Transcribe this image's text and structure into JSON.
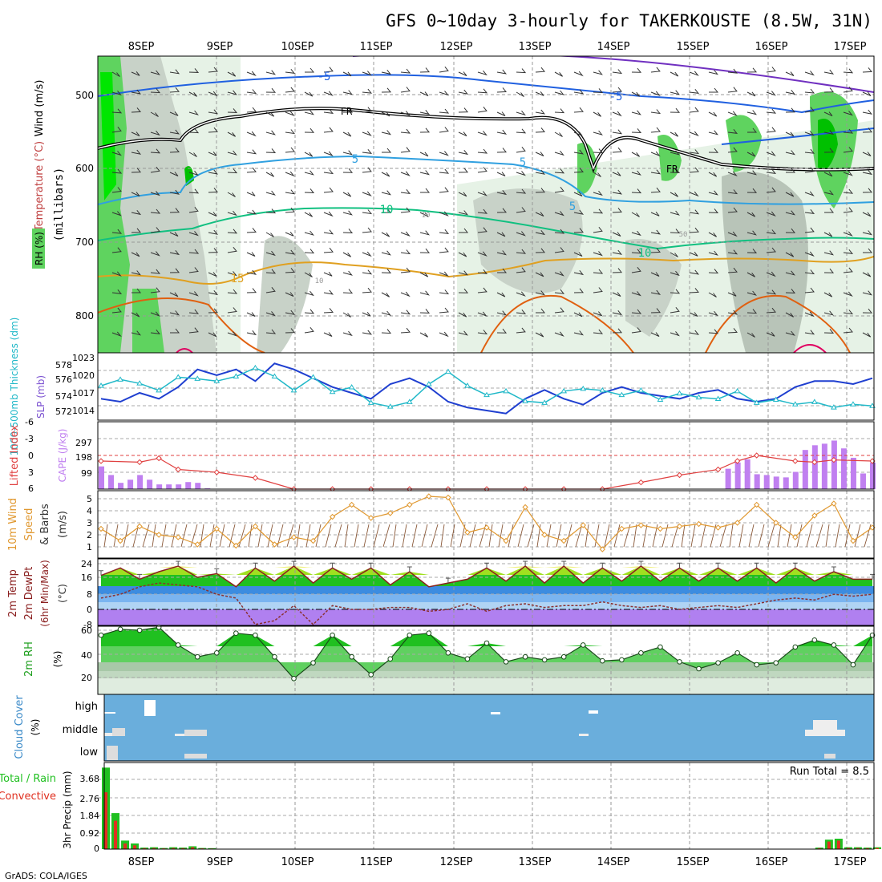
{
  "title": "GFS 0~10day 3-hourly for TAKERKOUSTE (8.5W, 31N)",
  "credit": "GrADS: COLA/IGES",
  "dates": [
    "8SEP",
    "9SEP",
    "10SEP",
    "11SEP",
    "12SEP",
    "13SEP",
    "14SEP",
    "15SEP",
    "16SEP",
    "17SEP"
  ],
  "colors": {
    "rh_light": "#e6f2e6",
    "rh_gray1": "#c8d2c8",
    "rh_gray2": "#a8b4a8",
    "rh_green": "#5fd35f",
    "rh_bright": "#00e600",
    "slp": "#1f3fd0",
    "thick": "#20b8c8",
    "li": "#e04040",
    "cape": "#c080f0",
    "wind": "#e09830",
    "temp_line": "#8b2020",
    "dew_line": "#8b3030",
    "cloud_bg": "#6aaedc",
    "precip_total": "#20c020",
    "precip_conv": "#e03020",
    "temp_neg5": "#7030c0",
    "temp_5": "#2060e0",
    "temp_m5": "#30a0e0",
    "temp_10": "#10c080",
    "temp_15": "#e0a020",
    "temp_20": "#e06010",
    "temp_25": "#e00060"
  },
  "panels": {
    "upper": {
      "ylabel_rh": "RH (%)",
      "ylabel_temp": "Temperature (°C)",
      "ylabel_wind": "Wind (m/s)",
      "ylabel_p": "(millibars)",
      "yticks": [
        "500",
        "600",
        "700",
        "800"
      ],
      "labels": {
        "m5a": "-5",
        "m5b": "-5",
        "fr1": "FR",
        "fr2": "FR",
        "c5a": "5",
        "c5b": "5",
        "c5c": "5",
        "c10a": "10",
        "c10b": "10",
        "c15": "15",
        "rh10": "10",
        "rh50": "50",
        "rh10b": "10"
      }
    },
    "slp": {
      "ylabel_thick": "1000-500mb Thickness (dm)",
      "ylabel_slp": "SLP (mb)",
      "left_ticks": [
        "578",
        "576",
        "574",
        "572"
      ],
      "right_ticks": [
        "1023",
        "1020",
        "1017",
        "1014"
      ]
    },
    "cape": {
      "ylabel_li": "Lifted Index",
      "ylabel_cape": "CAPE (J/kg)",
      "left_ticks": [
        "-6",
        "-3",
        "0",
        "3",
        "6"
      ],
      "right_ticks": [
        "297",
        "198",
        "99"
      ]
    },
    "wind": {
      "ylabel": "10m Wind Speed & Barbs (m/s)",
      "ylabel_a": "10m Wind",
      "ylabel_b": "Speed",
      "ylabel_c": "& Barbs",
      "ylabel_d": "(m/s)",
      "ticks": [
        "5",
        "4",
        "3",
        "2",
        "1"
      ]
    },
    "temp": {
      "ylabel_a": "2m Temp",
      "ylabel_b": "2m DewPt",
      "ylabel_c": "(6hr Min/Max)",
      "ylabel_d": "(°C)",
      "ticks": [
        "24",
        "16",
        "8",
        "0",
        "-8"
      ]
    },
    "rh": {
      "ylabel_a": "2m RH",
      "ylabel_b": "(%)",
      "ticks": [
        "60",
        "40",
        "20"
      ]
    },
    "cloud": {
      "ylabel_a": "Cloud Cover",
      "ylabel_b": "(%)",
      "levels": [
        "high",
        "middle",
        "low"
      ]
    },
    "precip": {
      "ylabel_a": "Total / Rain",
      "ylabel_b": "Convective",
      "ylabel_c": "3hr Precip (mm)",
      "ticks": [
        "3.68",
        "2.76",
        "1.84",
        "0.92",
        "0"
      ],
      "run_total": "Run Total = 8.5"
    }
  },
  "chart_data": [
    {
      "type": "line",
      "name": "SLP and 1000-500mb thickness",
      "x_unit": "forecast hour",
      "series": [
        {
          "name": "SLP (mb)",
          "x": [
            0,
            6,
            12,
            18,
            24,
            30,
            36,
            42,
            48,
            54,
            60,
            66,
            72,
            78,
            84,
            90,
            96,
            102,
            108,
            114,
            120,
            126,
            132,
            138,
            144,
            150,
            156,
            162,
            168,
            174,
            180,
            186,
            192,
            198,
            204,
            210,
            216,
            222,
            228,
            234,
            240
          ],
          "values": [
            1016,
            1015.5,
            1017,
            1016,
            1018,
            1021,
            1020,
            1021,
            1019,
            1022,
            1021,
            1019.5,
            1018,
            1017,
            1016,
            1018.5,
            1019.5,
            1018,
            1015.5,
            1014.5,
            1014,
            1013.5,
            1016,
            1017.5,
            1016,
            1015,
            1017,
            1018,
            1017,
            1016.5,
            1016,
            1017,
            1017.5,
            1016,
            1015.5,
            1016,
            1018,
            1019,
            1019,
            1018.5,
            1019.5
          ]
        },
        {
          "name": "1000-500mb Thickness (dm)",
          "x": [
            0,
            6,
            12,
            18,
            24,
            30,
            36,
            42,
            48,
            54,
            60,
            66,
            72,
            78,
            84,
            90,
            96,
            102,
            108,
            114,
            120,
            126,
            132,
            138,
            144,
            150,
            156,
            162,
            168,
            174,
            180,
            186,
            192,
            198,
            204,
            210,
            216,
            222,
            228,
            234,
            240
          ],
          "values": [
            575.2,
            576,
            575.5,
            574.6,
            576.3,
            576.1,
            575.8,
            576.4,
            577.5,
            576.4,
            574.6,
            576.3,
            574.4,
            575,
            573,
            572.5,
            573.1,
            575.4,
            577,
            575.2,
            574,
            574.5,
            573.2,
            573,
            574.5,
            574.8,
            574.6,
            574,
            574.6,
            573.4,
            574.2,
            573.7,
            573.5,
            574.5,
            573,
            573.4,
            572.8,
            573.1,
            572.4,
            572.8,
            572.6
          ]
        }
      ]
    },
    {
      "type": "bar",
      "name": "CAPE (J/kg) and Lifted Index",
      "x_unit": "forecast hour",
      "series": [
        {
          "name": "CAPE (J/kg)",
          "x": [
            0,
            3,
            6,
            9,
            12,
            15,
            18,
            21,
            24,
            27,
            30,
            33,
            195,
            198,
            201,
            204,
            207,
            210,
            213,
            216,
            219,
            222,
            225,
            228,
            231,
            234,
            237,
            240
          ],
          "values": [
            145,
            90,
            40,
            60,
            90,
            60,
            30,
            30,
            30,
            45,
            40,
            5,
            130,
            170,
            190,
            95,
            90,
            80,
            75,
            110,
            250,
            280,
            290,
            310,
            260,
            200,
            100,
            170
          ]
        },
        {
          "name": "Lifted Index",
          "x": [
            0,
            12,
            18,
            24,
            36,
            48,
            60,
            72,
            84,
            96,
            108,
            120,
            132,
            144,
            156,
            168,
            180,
            192,
            198,
            204,
            216,
            222,
            228,
            240
          ],
          "values": [
            1,
            1.2,
            0.5,
            2.5,
            3,
            4,
            6,
            6,
            6,
            6,
            6,
            6,
            6,
            6,
            6,
            4.8,
            3.5,
            2.5,
            1,
            0,
            1,
            1.2,
            0.8,
            1
          ]
        }
      ]
    },
    {
      "type": "line",
      "name": "10m Wind Speed (m/s)",
      "x_unit": "forecast hour",
      "series": [
        {
          "name": "10m Wind Speed (m/s)",
          "x": [
            0,
            6,
            12,
            18,
            24,
            30,
            36,
            42,
            48,
            54,
            60,
            66,
            72,
            78,
            84,
            90,
            96,
            102,
            108,
            114,
            120,
            126,
            132,
            138,
            144,
            150,
            156,
            162,
            168,
            174,
            180,
            186,
            192,
            198,
            204,
            210,
            216,
            222,
            228,
            234,
            240
          ],
          "values": [
            2.5,
            1.5,
            2.7,
            2,
            1.8,
            1.2,
            2.5,
            1.1,
            2.7,
            1.2,
            1.8,
            1.5,
            3.5,
            4.5,
            3.4,
            3.8,
            4.5,
            5.2,
            5.1,
            2.2,
            2.6,
            1.5,
            4.3,
            2,
            1.5,
            2.8,
            0.8,
            2.5,
            2.8,
            2.5,
            2.7,
            2.9,
            2.6,
            3,
            4.5,
            3,
            1.8,
            3.6,
            4.6,
            1.5,
            2.6
          ]
        }
      ]
    },
    {
      "type": "area",
      "name": "2m Temp and 2m DewPt (°C)",
      "x_unit": "forecast hour",
      "series": [
        {
          "name": "2m Temp (°C)",
          "x": [
            0,
            6,
            12,
            18,
            24,
            30,
            36,
            42,
            48,
            54,
            60,
            66,
            72,
            78,
            84,
            90,
            96,
            102,
            108,
            114,
            120,
            126,
            132,
            138,
            144,
            150,
            156,
            162,
            168,
            174,
            180,
            186,
            192,
            198,
            204,
            210,
            216,
            222,
            228,
            234,
            240
          ],
          "values": [
            18,
            22,
            16,
            20,
            23,
            17,
            19,
            12,
            22,
            15,
            23,
            14,
            22,
            16,
            22,
            13,
            20,
            12,
            14,
            16,
            22,
            15,
            23,
            14,
            23,
            14,
            22,
            15,
            23,
            15,
            22,
            15,
            22,
            15,
            22,
            14,
            22,
            15,
            20,
            16,
            16
          ]
        },
        {
          "name": "2m DewPt (°C)",
          "x": [
            0,
            6,
            12,
            18,
            24,
            30,
            36,
            42,
            48,
            54,
            60,
            66,
            72,
            78,
            84,
            90,
            96,
            102,
            108,
            114,
            120,
            126,
            132,
            138,
            144,
            150,
            156,
            162,
            168,
            174,
            180,
            186,
            192,
            198,
            204,
            210,
            216,
            222,
            228,
            234,
            240
          ],
          "values": [
            6,
            8,
            12,
            14,
            13,
            12,
            8,
            6,
            -8,
            -6,
            2,
            -8,
            2,
            0,
            0,
            1,
            1,
            -1,
            0,
            3,
            -1,
            2,
            3,
            1,
            2,
            2,
            4,
            2,
            1,
            2,
            0,
            1,
            2,
            1,
            3,
            5,
            6,
            5,
            8,
            7,
            8
          ]
        }
      ]
    },
    {
      "type": "area",
      "name": "2m RH (%)",
      "x_unit": "forecast hour",
      "series": [
        {
          "name": "2m RH (%)",
          "x": [
            0,
            6,
            12,
            18,
            24,
            30,
            36,
            42,
            48,
            54,
            60,
            66,
            72,
            78,
            84,
            90,
            96,
            102,
            108,
            114,
            120,
            126,
            132,
            138,
            144,
            150,
            156,
            162,
            168,
            174,
            180,
            186,
            192,
            198,
            204,
            210,
            216,
            222,
            228,
            234,
            240
          ],
          "values": [
            60,
            66,
            65,
            68,
            50,
            38,
            42,
            62,
            60,
            38,
            16,
            32,
            60,
            38,
            20,
            36,
            60,
            62,
            42,
            36,
            52,
            33,
            38,
            35,
            38,
            50,
            34,
            35,
            42,
            48,
            33,
            26,
            32,
            42,
            30,
            32,
            48,
            55,
            50,
            30,
            60
          ]
        }
      ]
    },
    {
      "type": "bar",
      "name": "3hr Precip (mm)",
      "x_unit": "forecast hour",
      "series": [
        {
          "name": "Total",
          "x": [
            0,
            3,
            6,
            9,
            12,
            15,
            18,
            21,
            24,
            27,
            30,
            33,
            222,
            225,
            228,
            231,
            234,
            237,
            240
          ],
          "values": [
            4.3,
            1.9,
            0.45,
            0.3,
            0.08,
            0.1,
            0.06,
            0.1,
            0.08,
            0.15,
            0.06,
            0.05,
            0.08,
            0.5,
            0.55,
            0.1,
            0.1,
            0.08,
            0.1
          ]
        },
        {
          "name": "Convective",
          "x": [
            0,
            3,
            6,
            9,
            12,
            15,
            18,
            21,
            24,
            27,
            30,
            33,
            222,
            225,
            228,
            231,
            234,
            237,
            240
          ],
          "values": [
            3.0,
            1.5,
            0.3,
            0.2,
            0.05,
            0.06,
            0.04,
            0.06,
            0.05,
            0.1,
            0.04,
            0.03,
            0.05,
            0.4,
            0.45,
            0.06,
            0.06,
            0.05,
            0.06
          ]
        }
      ]
    }
  ]
}
